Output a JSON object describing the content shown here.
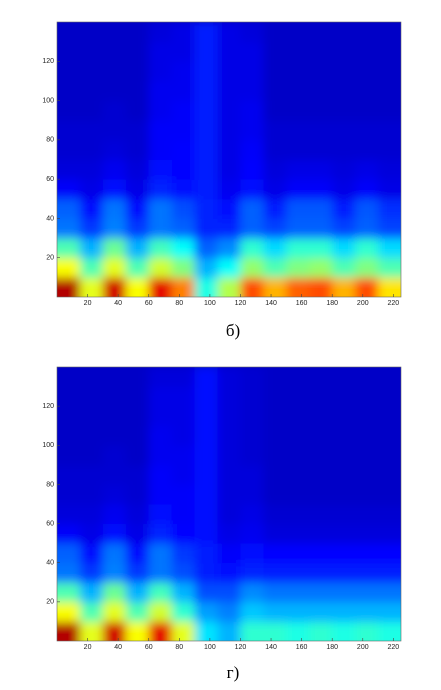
{
  "chart_data": [
    {
      "type": "heatmap",
      "caption": "б)",
      "colormap": "jet",
      "x": [
        7.5,
        22.5,
        37.5,
        52.5,
        67.5,
        82.5,
        97.5,
        112.5,
        127.5,
        142.5,
        157.5,
        172.5,
        187.5,
        202.5,
        217.5
      ],
      "y": [
        5,
        15,
        25,
        35,
        45,
        55,
        65,
        75,
        85,
        95,
        105,
        115,
        125,
        135
      ],
      "z": [
        [
          0.95,
          0.6,
          0.92,
          0.62,
          0.9,
          0.75,
          0.4,
          0.55,
          0.8,
          0.7,
          0.78,
          0.8,
          0.7,
          0.8,
          0.65
        ],
        [
          0.62,
          0.45,
          0.6,
          0.45,
          0.58,
          0.5,
          0.3,
          0.38,
          0.52,
          0.45,
          0.5,
          0.52,
          0.45,
          0.5,
          0.45
        ],
        [
          0.45,
          0.3,
          0.48,
          0.3,
          0.44,
          0.38,
          0.22,
          0.26,
          0.42,
          0.34,
          0.42,
          0.42,
          0.34,
          0.42,
          0.34
        ],
        [
          0.24,
          0.18,
          0.25,
          0.18,
          0.24,
          0.22,
          0.16,
          0.16,
          0.22,
          0.19,
          0.22,
          0.22,
          0.19,
          0.22,
          0.19
        ],
        [
          0.22,
          0.14,
          0.24,
          0.14,
          0.24,
          0.2,
          0.16,
          0.14,
          0.22,
          0.15,
          0.21,
          0.21,
          0.15,
          0.21,
          0.17
        ],
        [
          0.12,
          0.1,
          0.14,
          0.1,
          0.16,
          0.14,
          0.15,
          0.11,
          0.14,
          0.1,
          0.12,
          0.12,
          0.1,
          0.12,
          0.1
        ],
        [
          0.09,
          0.09,
          0.11,
          0.09,
          0.14,
          0.13,
          0.15,
          0.1,
          0.13,
          0.09,
          0.1,
          0.1,
          0.09,
          0.1,
          0.09
        ],
        [
          0.08,
          0.08,
          0.09,
          0.08,
          0.12,
          0.13,
          0.15,
          0.1,
          0.12,
          0.08,
          0.08,
          0.08,
          0.08,
          0.08,
          0.08
        ],
        [
          0.08,
          0.08,
          0.08,
          0.08,
          0.12,
          0.12,
          0.15,
          0.1,
          0.11,
          0.08,
          0.08,
          0.08,
          0.08,
          0.08,
          0.08
        ],
        [
          0.07,
          0.07,
          0.08,
          0.07,
          0.11,
          0.12,
          0.15,
          0.1,
          0.11,
          0.07,
          0.07,
          0.07,
          0.07,
          0.07,
          0.07
        ],
        [
          0.07,
          0.07,
          0.07,
          0.07,
          0.11,
          0.11,
          0.15,
          0.1,
          0.1,
          0.07,
          0.07,
          0.07,
          0.07,
          0.07,
          0.07
        ],
        [
          0.07,
          0.07,
          0.07,
          0.07,
          0.1,
          0.11,
          0.15,
          0.1,
          0.1,
          0.07,
          0.07,
          0.07,
          0.07,
          0.07,
          0.07
        ],
        [
          0.07,
          0.07,
          0.07,
          0.07,
          0.1,
          0.1,
          0.15,
          0.1,
          0.1,
          0.07,
          0.07,
          0.07,
          0.07,
          0.07,
          0.07
        ],
        [
          0.07,
          0.07,
          0.07,
          0.07,
          0.09,
          0.1,
          0.15,
          0.1,
          0.09,
          0.07,
          0.07,
          0.07,
          0.07,
          0.07,
          0.07
        ]
      ],
      "zlim": [
        0,
        1
      ],
      "xlim": [
        0,
        225
      ],
      "ylim": [
        0,
        140
      ],
      "xticks": [
        20,
        40,
        60,
        80,
        100,
        120,
        140,
        160,
        180,
        200,
        220
      ],
      "yticks": [
        20,
        40,
        60,
        80,
        100,
        120
      ]
    },
    {
      "type": "heatmap",
      "caption": "г)",
      "colormap": "jet",
      "x": [
        7.5,
        22.5,
        37.5,
        52.5,
        67.5,
        82.5,
        97.5,
        112.5,
        127.5,
        142.5,
        157.5,
        172.5,
        187.5,
        202.5,
        217.5
      ],
      "y": [
        5,
        15,
        25,
        35,
        45,
        55,
        65,
        75,
        85,
        95,
        105,
        115,
        125,
        135
      ],
      "z": [
        [
          0.95,
          0.6,
          0.92,
          0.62,
          0.9,
          0.6,
          0.35,
          0.3,
          0.42,
          0.42,
          0.4,
          0.42,
          0.4,
          0.42,
          0.4
        ],
        [
          0.62,
          0.45,
          0.6,
          0.45,
          0.58,
          0.42,
          0.28,
          0.25,
          0.32,
          0.3,
          0.3,
          0.3,
          0.3,
          0.3,
          0.3
        ],
        [
          0.45,
          0.3,
          0.48,
          0.3,
          0.44,
          0.3,
          0.2,
          0.2,
          0.26,
          0.24,
          0.24,
          0.24,
          0.24,
          0.24,
          0.24
        ],
        [
          0.24,
          0.18,
          0.25,
          0.18,
          0.24,
          0.2,
          0.15,
          0.14,
          0.16,
          0.15,
          0.15,
          0.15,
          0.15,
          0.15,
          0.15
        ],
        [
          0.22,
          0.14,
          0.24,
          0.14,
          0.24,
          0.18,
          0.15,
          0.12,
          0.14,
          0.13,
          0.13,
          0.13,
          0.13,
          0.13,
          0.13
        ],
        [
          0.12,
          0.1,
          0.14,
          0.1,
          0.16,
          0.13,
          0.14,
          0.1,
          0.11,
          0.09,
          0.09,
          0.09,
          0.09,
          0.09,
          0.09
        ],
        [
          0.09,
          0.09,
          0.11,
          0.09,
          0.14,
          0.12,
          0.14,
          0.09,
          0.1,
          0.08,
          0.08,
          0.08,
          0.08,
          0.08,
          0.08
        ],
        [
          0.08,
          0.08,
          0.09,
          0.08,
          0.12,
          0.12,
          0.14,
          0.09,
          0.09,
          0.07,
          0.07,
          0.07,
          0.07,
          0.07,
          0.07
        ],
        [
          0.08,
          0.08,
          0.08,
          0.08,
          0.12,
          0.11,
          0.14,
          0.09,
          0.09,
          0.07,
          0.07,
          0.07,
          0.07,
          0.07,
          0.07
        ],
        [
          0.07,
          0.07,
          0.08,
          0.07,
          0.11,
          0.11,
          0.14,
          0.09,
          0.08,
          0.07,
          0.07,
          0.07,
          0.07,
          0.07,
          0.07
        ],
        [
          0.07,
          0.07,
          0.07,
          0.07,
          0.11,
          0.1,
          0.14,
          0.09,
          0.08,
          0.07,
          0.07,
          0.07,
          0.07,
          0.07,
          0.07
        ],
        [
          0.07,
          0.07,
          0.07,
          0.07,
          0.1,
          0.1,
          0.14,
          0.09,
          0.08,
          0.07,
          0.07,
          0.07,
          0.07,
          0.07,
          0.07
        ],
        [
          0.07,
          0.07,
          0.07,
          0.07,
          0.1,
          0.1,
          0.14,
          0.09,
          0.08,
          0.07,
          0.07,
          0.07,
          0.07,
          0.07,
          0.07
        ],
        [
          0.07,
          0.07,
          0.07,
          0.07,
          0.09,
          0.09,
          0.14,
          0.09,
          0.08,
          0.07,
          0.07,
          0.07,
          0.07,
          0.07,
          0.07
        ]
      ],
      "zlim": [
        0,
        1
      ],
      "xlim": [
        0,
        225
      ],
      "ylim": [
        0,
        140
      ],
      "xticks": [
        20,
        40,
        60,
        80,
        100,
        120,
        140,
        160,
        180,
        200,
        220
      ],
      "yticks": [
        20,
        40,
        60,
        80,
        100,
        120
      ]
    }
  ]
}
